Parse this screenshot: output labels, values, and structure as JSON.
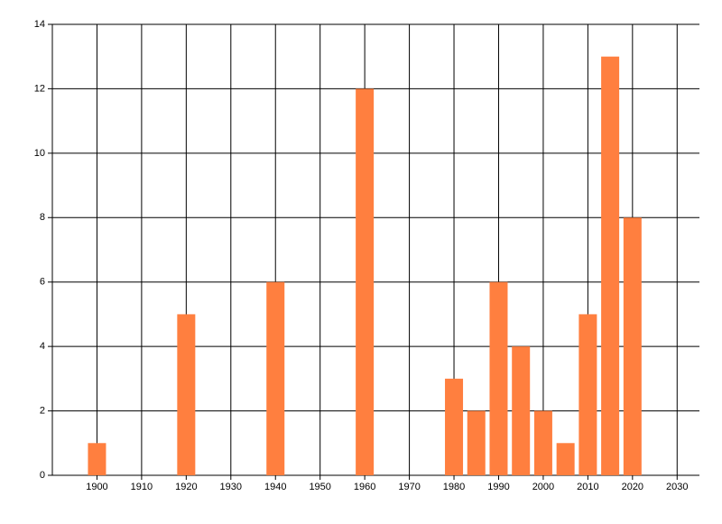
{
  "chart_data": {
    "type": "bar",
    "x": [
      1900,
      1920,
      1940,
      1960,
      1980,
      1985,
      1990,
      1995,
      2000,
      2005,
      2010,
      2015,
      2020
    ],
    "values": [
      1,
      5,
      6,
      12,
      3,
      2,
      6,
      4,
      2,
      1,
      5,
      13,
      8
    ],
    "color": "#ff7f3f",
    "xlim": [
      1890,
      2035
    ],
    "xticks": [
      1900,
      1910,
      1920,
      1930,
      1940,
      1950,
      1960,
      1970,
      1980,
      1990,
      2000,
      2010,
      2020,
      2030
    ],
    "ylim": [
      0,
      14
    ],
    "yticks": [
      0,
      2,
      4,
      6,
      8,
      10,
      12,
      14
    ],
    "grid": true
  }
}
